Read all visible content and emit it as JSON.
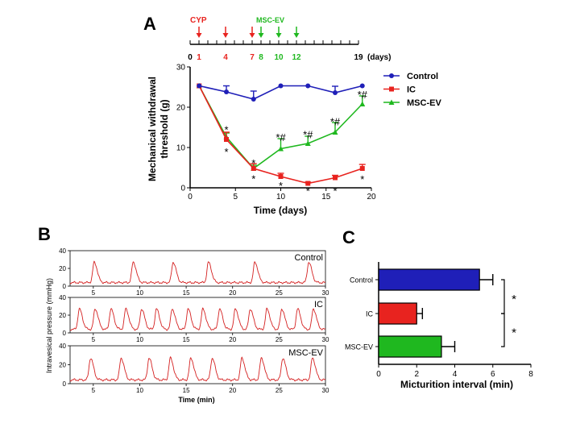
{
  "panel_labels": {
    "a": "A",
    "b": "B",
    "c": "C"
  },
  "colors": {
    "control": "#1f1fb8",
    "ic": "#e8231f",
    "mscev": "#1fb81f",
    "trace": "#d42020",
    "axis": "#000000"
  },
  "timeline": {
    "cyp_label": "CYP",
    "mscev_label": "MSC-EV",
    "ticks": [
      0,
      1,
      4,
      7,
      8,
      10,
      12,
      19
    ],
    "tick_labels": [
      {
        "day": 0,
        "text": "0",
        "color": "axis"
      },
      {
        "day": 1,
        "text": "1",
        "color": "ic"
      },
      {
        "day": 4,
        "text": "4",
        "color": "ic"
      },
      {
        "day": 7,
        "text": "7",
        "color": "ic"
      },
      {
        "day": 8,
        "text": "8",
        "color": "mscev"
      },
      {
        "day": 10,
        "text": "10",
        "color": "mscev"
      },
      {
        "day": 12,
        "text": "12",
        "color": "mscev"
      },
      {
        "day": 19,
        "text": "19",
        "color": "axis"
      }
    ],
    "unit": "(days)",
    "cyp_days": [
      1,
      4,
      7
    ],
    "mscev_days": [
      8,
      10,
      12
    ]
  },
  "chart_data": [
    {
      "type": "line",
      "panel": "A",
      "xlabel": "Time (days)",
      "ylabel": "Mechanical withdrawal threshold (g)",
      "ylabel_lines": [
        "Mechanical withdrawal",
        "threshold (g)"
      ],
      "xlim": [
        0,
        20
      ],
      "ylim": [
        0,
        30
      ],
      "xticks": [
        0,
        5,
        10,
        15,
        20
      ],
      "yticks": [
        0,
        10,
        20,
        30
      ],
      "legend_position": "top-right",
      "series": [
        {
          "name": "Control",
          "color": "control",
          "marker": "circle",
          "x": [
            1,
            4,
            7,
            10,
            13,
            16,
            19
          ],
          "y": [
            25.3,
            23.8,
            22.0,
            25.3,
            25.3,
            23.6,
            25.3
          ],
          "err": [
            0,
            1.5,
            2.0,
            0,
            0,
            1.6,
            0
          ]
        },
        {
          "name": "IC",
          "color": "ic",
          "marker": "square",
          "x": [
            1,
            4,
            7,
            10,
            13,
            16,
            19
          ],
          "y": [
            25.3,
            12.0,
            4.8,
            2.8,
            1.1,
            2.5,
            4.8
          ],
          "err": [
            0,
            1.8,
            1.2,
            0.8,
            0.3,
            0.6,
            1.0
          ]
        },
        {
          "name": "MSC-EV",
          "color": "mscev",
          "marker": "triangle",
          "x": [
            1,
            4,
            7,
            10,
            13,
            16,
            19
          ],
          "y": [
            25.3,
            12.6,
            4.8,
            9.7,
            11.0,
            13.8,
            20.8
          ],
          "err": [
            0,
            1.0,
            0.8,
            2.5,
            1.8,
            2.4,
            2.0
          ]
        }
      ],
      "annotations": [
        {
          "x": 4,
          "y": 14.5,
          "text": "*"
        },
        {
          "x": 4,
          "y": 9.0,
          "text": "*"
        },
        {
          "x": 7,
          "y": 6.2,
          "text": "*"
        },
        {
          "x": 7,
          "y": 2.3,
          "text": "*"
        },
        {
          "x": 10,
          "y": 12.6,
          "text": "*#"
        },
        {
          "x": 10,
          "y": 0.6,
          "text": "*"
        },
        {
          "x": 13,
          "y": 13.3,
          "text": "*#"
        },
        {
          "x": 13,
          "y": -0.7,
          "text": "*"
        },
        {
          "x": 16,
          "y": 16.5,
          "text": "*#"
        },
        {
          "x": 16,
          "y": -0.7,
          "text": "*"
        },
        {
          "x": 19,
          "y": 23.2,
          "text": "*#"
        },
        {
          "x": 19,
          "y": 2.2,
          "text": "*"
        }
      ]
    },
    {
      "type": "line",
      "panel": "B",
      "ylabel": "Intravesical pressure (mmHg)",
      "xlabel": "Time (min)",
      "xlim": [
        2.5,
        30
      ],
      "xticks": [
        5,
        10,
        15,
        20,
        25,
        30
      ],
      "ylim": [
        0,
        40
      ],
      "yticks": [
        0,
        20,
        40
      ],
      "traces": [
        {
          "name": "Control",
          "baseline": 4,
          "peak": 27,
          "spikes": [
            5.1,
            9.3,
            13.6,
            17.4,
            22.4,
            28.2
          ]
        },
        {
          "name": "IC",
          "baseline": 4,
          "peak": 27,
          "spikes": [
            3.5,
            5.2,
            6.9,
            8.5,
            10.2,
            11.8,
            13.5,
            15.2,
            16.8,
            18.6,
            20.3,
            21.9,
            23.7,
            25.3,
            27.0,
            28.7
          ]
        },
        {
          "name": "MSC-EV",
          "baseline": 4,
          "peak": 27,
          "spikes": [
            4.7,
            8.0,
            11.0,
            13.3,
            15.5,
            17.8,
            21.0,
            23.1,
            25.4,
            28.6
          ]
        }
      ]
    },
    {
      "type": "bar",
      "orientation": "horizontal",
      "panel": "C",
      "categories": [
        "Control",
        "IC",
        "MSC-EV"
      ],
      "values": [
        5.3,
        2.0,
        3.3
      ],
      "errors": [
        0.7,
        0.3,
        0.7
      ],
      "colors": [
        "control",
        "ic",
        "mscev"
      ],
      "xlabel": "Micturition interval (min)",
      "xlim": [
        0,
        8
      ],
      "xticks": [
        0,
        2,
        4,
        6,
        8
      ],
      "significance": [
        {
          "between": [
            "Control",
            "IC"
          ],
          "text": "*"
        },
        {
          "between": [
            "IC",
            "MSC-EV"
          ],
          "text": "*"
        }
      ]
    }
  ]
}
